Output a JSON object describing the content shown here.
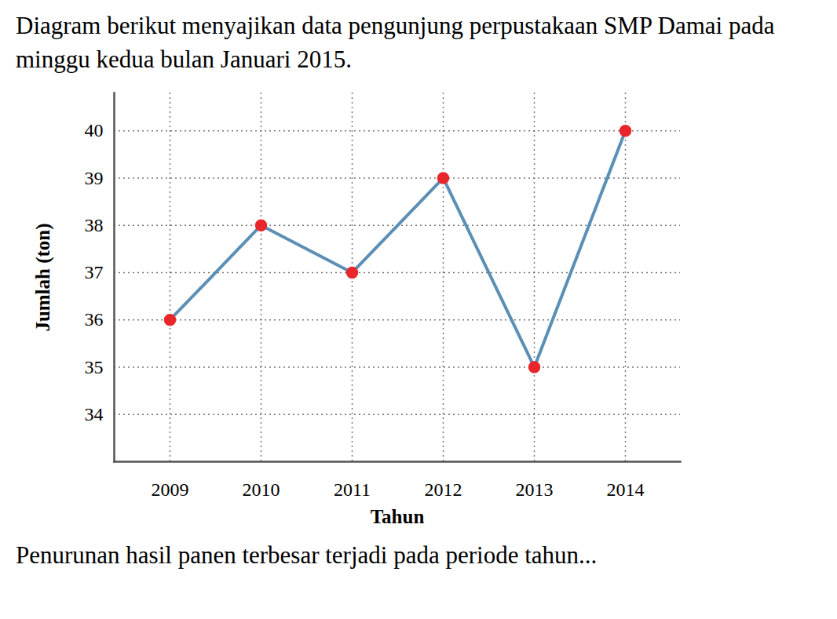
{
  "chart_data": {
    "type": "line",
    "title": "Diagram berikut menyajikan data pengunjung perpustakaan SMP Damai pada minggu kedua bulan Januari 2015.",
    "caption": "Penurunan hasil panen terbesar terjadi pada periode tahun...",
    "x_label": "Tahun",
    "y_label": "Jumlah (ton)",
    "categories": [
      "2009",
      "2010",
      "2011",
      "2012",
      "2013",
      "2014"
    ],
    "values": [
      36,
      38,
      37,
      39,
      35,
      40
    ],
    "color": "#5b8fb5",
    "colors": [
      "#e8262b",
      "#e8262b",
      "#e8262b",
      "#e8262b",
      "#e8262b",
      "#e8262b"
    ],
    "marker": "circle",
    "ylim": [
      33,
      40.8
    ],
    "yticks": [
      34,
      35,
      36,
      37,
      38,
      39,
      40
    ],
    "grid": true
  }
}
